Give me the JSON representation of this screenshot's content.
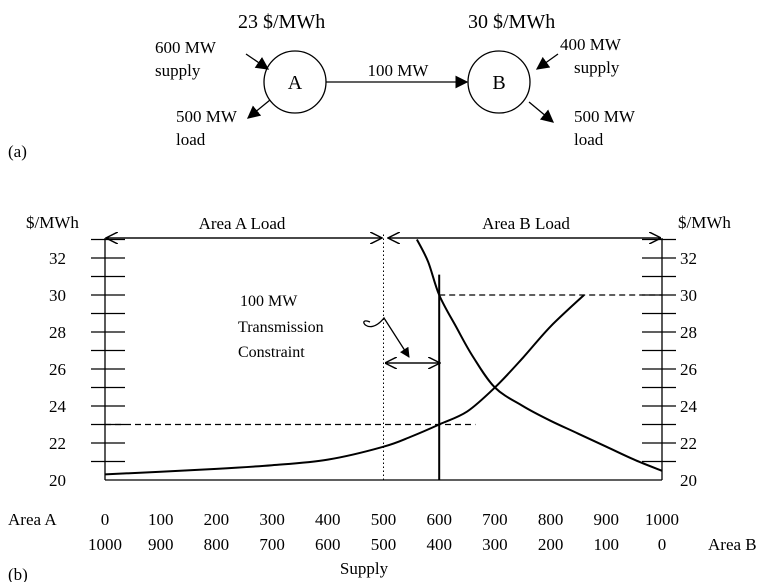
{
  "network": {
    "label": "(a)",
    "area_a": {
      "name": "A",
      "price": "23 $/MWh",
      "supply_line1": "600 MW",
      "supply_line2": "supply",
      "load_line1": "500 MW",
      "load_line2": "load"
    },
    "area_b": {
      "name": "B",
      "price": "30 $/MWh",
      "supply_line1": "400 MW",
      "supply_line2": "supply",
      "load_line1": "500 MW",
      "load_line2": "load"
    },
    "flow": "100 MW"
  },
  "chart": {
    "label": "(b)",
    "y_unit_left": "$/MWh",
    "y_unit_right": "$/MWh",
    "area_a_load": "Area A Load",
    "area_b_load": "Area B Load",
    "constraint_line1": "100 MW",
    "constraint_line2": "Transmission",
    "constraint_line3": "Constraint",
    "row_label_a": "Area A",
    "row_label_b": "Area B",
    "x_title": "Supply",
    "y_ticks": [
      "20",
      "22",
      "24",
      "26",
      "28",
      "30",
      "32"
    ],
    "x_ticks_a": [
      "0",
      "100",
      "200",
      "300",
      "400",
      "500",
      "600",
      "700",
      "800",
      "900",
      "1000"
    ],
    "x_ticks_b": [
      "1000",
      "900",
      "800",
      "700",
      "600",
      "500",
      "400",
      "300",
      "200",
      "100",
      "0"
    ]
  },
  "chart_data": {
    "type": "line",
    "x_axis_label": "Supply",
    "xlim": [
      0,
      1000
    ],
    "ylim": [
      20,
      33
    ],
    "series": [
      {
        "x": [
          0,
          100,
          200,
          300,
          400,
          500,
          550,
          600,
          650,
          700,
          750,
          800,
          860
        ],
        "y": [
          20.3,
          20.45,
          20.6,
          20.8,
          21.1,
          21.8,
          22.35,
          23.0,
          23.7,
          25.0,
          26.6,
          28.3,
          30.0
        ]
      },
      {
        "x": [
          560,
          580,
          600,
          630,
          660,
          700,
          750,
          800,
          850,
          900,
          950,
          1000
        ],
        "y": [
          33.0,
          31.8,
          30.0,
          28.3,
          26.7,
          25.0,
          24.0,
          23.2,
          22.5,
          21.8,
          21.1,
          20.5
        ]
      }
    ],
    "reference_lines": [
      {
        "x": 500,
        "y_range": [
          20,
          33.3
        ]
      },
      {
        "x": 600,
        "y_range": [
          20,
          31.1
        ]
      },
      {
        "y": 23,
        "x_range": [
          0,
          665
        ]
      },
      {
        "y": 30,
        "x_range": [
          600,
          1000
        ]
      }
    ]
  }
}
